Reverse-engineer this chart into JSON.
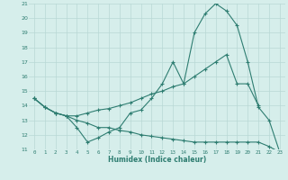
{
  "xlabel": "Humidex (Indice chaleur)",
  "x_values": [
    0,
    1,
    2,
    3,
    4,
    5,
    6,
    7,
    8,
    9,
    10,
    11,
    12,
    13,
    14,
    15,
    16,
    17,
    18,
    19,
    20,
    21,
    22,
    23
  ],
  "line1": [
    14.5,
    13.9,
    13.5,
    13.3,
    12.5,
    11.5,
    11.8,
    12.2,
    12.5,
    13.5,
    13.7,
    14.5,
    15.5,
    17.0,
    15.5,
    19.0,
    20.3,
    21.0,
    20.5,
    19.5,
    17.0,
    13.9,
    13.0,
    10.8
  ],
  "line2": [
    14.5,
    13.9,
    13.5,
    13.3,
    13.3,
    13.5,
    13.7,
    13.8,
    14.0,
    14.2,
    14.5,
    14.8,
    15.0,
    15.3,
    15.5,
    16.0,
    16.5,
    17.0,
    17.5,
    15.5,
    15.5,
    14.0,
    null,
    null
  ],
  "line3": [
    14.5,
    13.9,
    13.5,
    13.3,
    13.0,
    12.8,
    12.5,
    12.5,
    12.3,
    12.2,
    12.0,
    11.9,
    11.8,
    11.7,
    11.6,
    11.5,
    11.5,
    11.5,
    11.5,
    11.5,
    11.5,
    11.5,
    11.2,
    10.8
  ],
  "line_color": "#2e7d71",
  "bg_color": "#d6eeeb",
  "grid_color": "#b8d8d5",
  "ylim": [
    11,
    21
  ],
  "yticks": [
    11,
    12,
    13,
    14,
    15,
    16,
    17,
    18,
    19,
    20,
    21
  ],
  "xlim": [
    -0.5,
    23.5
  ],
  "xticks": [
    0,
    1,
    2,
    3,
    4,
    5,
    6,
    7,
    8,
    9,
    10,
    11,
    12,
    13,
    14,
    15,
    16,
    17,
    18,
    19,
    20,
    21,
    22,
    23
  ]
}
